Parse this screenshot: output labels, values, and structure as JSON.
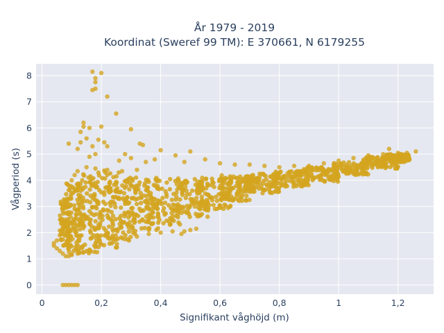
{
  "chart_data": {
    "type": "scatter",
    "title": "År 1979 - 2019",
    "subtitle": "Koordinat (Sweref 99 TM): E 370661, N 6179255",
    "xlabel": "Signifikant våghöjd (m)",
    "ylabel": "Vågperiod (s)",
    "xlim": [
      -0.02,
      1.32
    ],
    "ylim": [
      -0.35,
      8.45
    ],
    "x_ticks": [
      0,
      0.2,
      0.4,
      0.6,
      0.8,
      1.0,
      1.2
    ],
    "x_tick_labels": [
      "0",
      "0,2",
      "0,4",
      "0,6",
      "0,8",
      "1",
      "1,2"
    ],
    "y_ticks": [
      0,
      1,
      2,
      3,
      4,
      5,
      6,
      7,
      8
    ],
    "y_tick_labels": [
      "0",
      "1",
      "2",
      "3",
      "4",
      "5",
      "6",
      "7",
      "8"
    ],
    "grid": true,
    "legend": "none",
    "marker_color": "#d4a420",
    "plot_background": "#e5e8f0",
    "grid_color": "#ffffff",
    "text_color": "#2a3f5f",
    "series": [
      {
        "points": [
          [
            0.07,
            0.0
          ],
          [
            0.08,
            0.0
          ],
          [
            0.09,
            0.0
          ],
          [
            0.1,
            0.0
          ],
          [
            0.11,
            0.0
          ],
          [
            0.12,
            0.0
          ],
          [
            0.17,
            8.15
          ],
          [
            0.2,
            8.1
          ],
          [
            0.18,
            7.9
          ],
          [
            0.18,
            7.75
          ],
          [
            0.17,
            7.45
          ],
          [
            0.18,
            7.5
          ],
          [
            0.22,
            7.2
          ],
          [
            0.25,
            6.55
          ],
          [
            0.14,
            6.2
          ],
          [
            0.14,
            6.05
          ],
          [
            0.16,
            6.0
          ],
          [
            0.2,
            6.05
          ],
          [
            0.3,
            5.95
          ],
          [
            0.13,
            5.85
          ],
          [
            0.15,
            5.6
          ],
          [
            0.13,
            5.45
          ],
          [
            0.19,
            5.55
          ],
          [
            0.21,
            5.45
          ],
          [
            0.09,
            5.4
          ],
          [
            0.33,
            5.4
          ],
          [
            0.34,
            5.35
          ],
          [
            0.12,
            5.2
          ],
          [
            0.17,
            5.3
          ],
          [
            0.22,
            5.3
          ],
          [
            0.4,
            5.15
          ],
          [
            0.5,
            5.1
          ],
          [
            0.18,
            5.0
          ],
          [
            0.28,
            5.0
          ],
          [
            0.45,
            4.95
          ],
          [
            0.16,
            4.9
          ],
          [
            0.3,
            4.85
          ],
          [
            0.38,
            4.8
          ],
          [
            0.55,
            4.8
          ],
          [
            0.26,
            4.75
          ],
          [
            0.35,
            4.7
          ],
          [
            0.48,
            4.7
          ],
          [
            0.6,
            4.65
          ],
          [
            0.65,
            4.6
          ],
          [
            0.7,
            4.6
          ],
          [
            0.75,
            4.55
          ],
          [
            0.8,
            4.5
          ],
          [
            0.85,
            4.55
          ],
          [
            0.9,
            4.55
          ],
          [
            0.95,
            4.65
          ],
          [
            1.0,
            4.75
          ],
          [
            1.05,
            4.85
          ],
          [
            1.1,
            4.95
          ],
          [
            1.15,
            5.0
          ],
          [
            1.2,
            5.05
          ],
          [
            1.23,
            5.05
          ],
          [
            1.26,
            5.1
          ],
          [
            1.17,
            5.2
          ],
          [
            0.04,
            1.5
          ],
          [
            0.04,
            1.6
          ],
          [
            0.05,
            1.4
          ],
          [
            0.05,
            1.7
          ],
          [
            0.06,
            1.3
          ],
          [
            0.06,
            1.9
          ],
          [
            0.07,
            1.2
          ],
          [
            0.07,
            2.2
          ],
          [
            0.08,
            1.1
          ],
          [
            0.08,
            2.5
          ],
          [
            0.09,
            1.1
          ],
          [
            0.1,
            1.15
          ],
          [
            0.12,
            1.2
          ],
          [
            0.14,
            1.25
          ],
          [
            0.16,
            1.35
          ],
          [
            0.18,
            1.45
          ],
          [
            0.2,
            1.55
          ],
          [
            0.24,
            1.65
          ],
          [
            0.28,
            1.75
          ],
          [
            0.32,
            1.85
          ],
          [
            0.36,
            1.95
          ],
          [
            0.4,
            2.0
          ],
          [
            0.44,
            2.05
          ],
          [
            0.48,
            2.05
          ],
          [
            0.5,
            2.1
          ],
          [
            0.52,
            2.15
          ],
          [
            0.47,
            1.95
          ],
          [
            0.09,
            3.8
          ],
          [
            0.1,
            4.0
          ],
          [
            0.11,
            4.2
          ],
          [
            0.12,
            4.35
          ],
          [
            0.15,
            4.5
          ],
          [
            0.18,
            4.45
          ],
          [
            0.22,
            4.4
          ],
          [
            0.27,
            4.35
          ],
          [
            0.32,
            4.4
          ]
        ],
        "bands": [
          {
            "x": [
              0.06,
              0.1
            ],
            "y": [
              1.5,
              3.3
            ]
          },
          {
            "x": [
              0.08,
              0.14
            ],
            "y": [
              1.15,
              3.9
            ]
          },
          {
            "x": [
              0.11,
              0.2
            ],
            "y": [
              1.2,
              4.3
            ]
          },
          {
            "x": [
              0.16,
              0.26
            ],
            "y": [
              1.4,
              4.4
            ]
          },
          {
            "x": [
              0.22,
              0.32
            ],
            "y": [
              1.7,
              4.2
            ]
          },
          {
            "x": [
              0.28,
              0.4
            ],
            "y": [
              2.0,
              4.1
            ]
          },
          {
            "x": [
              0.35,
              0.48
            ],
            "y": [
              2.3,
              4.1
            ]
          },
          {
            "x": [
              0.44,
              0.56
            ],
            "y": [
              2.6,
              4.1
            ]
          },
          {
            "x": [
              0.52,
              0.64
            ],
            "y": [
              2.9,
              4.1
            ]
          },
          {
            "x": [
              0.6,
              0.72
            ],
            "y": [
              3.2,
              4.2
            ]
          },
          {
            "x": [
              0.68,
              0.8
            ],
            "y": [
              3.5,
              4.25
            ]
          },
          {
            "x": [
              0.78,
              0.9
            ],
            "y": [
              3.75,
              4.35
            ]
          },
          {
            "x": [
              0.88,
              1.0
            ],
            "y": [
              3.95,
              4.5
            ]
          },
          {
            "x": [
              0.98,
              1.1
            ],
            "y": [
              4.2,
              4.7
            ]
          },
          {
            "x": [
              1.08,
              1.2
            ],
            "y": [
              4.45,
              4.9
            ]
          },
          {
            "x": [
              1.16,
              1.24
            ],
            "y": [
              4.7,
              5.0
            ]
          }
        ]
      }
    ]
  }
}
